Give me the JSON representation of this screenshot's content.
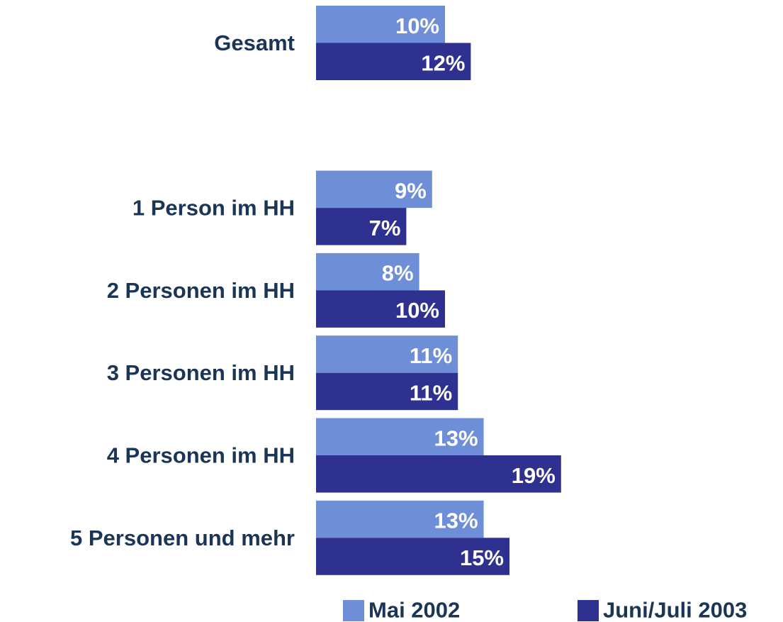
{
  "chart_data": {
    "type": "bar",
    "orientation": "horizontal",
    "categories": [
      "Gesamt",
      null,
      "1 Person im HH",
      "2 Personen im HH",
      "3 Personen im HH",
      "4 Personen im HH",
      "5 Personen und mehr"
    ],
    "series": [
      {
        "name": "Mai 2002",
        "color": "#6e8fd8",
        "values": [
          10,
          null,
          9,
          8,
          11,
          13,
          13
        ],
        "value_labels": [
          "10%",
          null,
          "9%",
          "8%",
          "11%",
          "13%",
          "13%"
        ]
      },
      {
        "name": "Juni/Juli 2003",
        "color": "#2e318f",
        "values": [
          12,
          null,
          7,
          10,
          11,
          19,
          15
        ],
        "value_labels": [
          "12%",
          null,
          "7%",
          "10%",
          "11%",
          "19%",
          "15%"
        ]
      }
    ]
  }
}
